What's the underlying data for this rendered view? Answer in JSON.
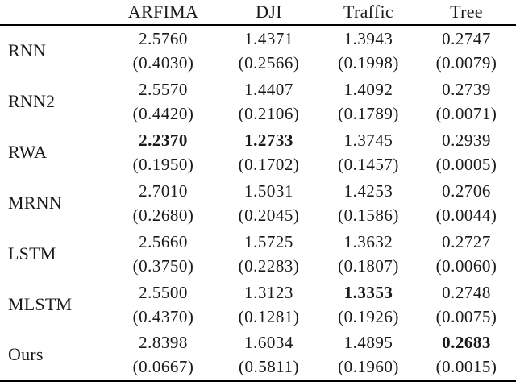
{
  "colors": {
    "background": "#ffffff",
    "text": "#1a1a1a",
    "rule": "#000000"
  },
  "table": {
    "columns": [
      "ARFIMA",
      "DJI",
      "Traffic",
      "Tree"
    ],
    "rows": [
      {
        "label": "RNN",
        "cells": [
          {
            "value": "2.5760",
            "std": "(0.4030)",
            "bold": false
          },
          {
            "value": "1.4371",
            "std": "(0.2566)",
            "bold": false
          },
          {
            "value": "1.3943",
            "std": "(0.1998)",
            "bold": false
          },
          {
            "value": "0.2747",
            "std": "(0.0079)",
            "bold": false
          }
        ]
      },
      {
        "label": "RNN2",
        "cells": [
          {
            "value": "2.5570",
            "std": "(0.4420)",
            "bold": false
          },
          {
            "value": "1.4407",
            "std": "(0.2106)",
            "bold": false
          },
          {
            "value": "1.4092",
            "std": "(0.1789)",
            "bold": false
          },
          {
            "value": "0.2739",
            "std": "(0.0071)",
            "bold": false
          }
        ]
      },
      {
        "label": "RWA",
        "cells": [
          {
            "value": "2.2370",
            "std": "(0.1950)",
            "bold": true
          },
          {
            "value": "1.2733",
            "std": "(0.1702)",
            "bold": true
          },
          {
            "value": "1.3745",
            "std": "(0.1457)",
            "bold": false
          },
          {
            "value": "0.2939",
            "std": "(0.0005)",
            "bold": false
          }
        ]
      },
      {
        "label": "MRNN",
        "cells": [
          {
            "value": "2.7010",
            "std": "(0.2680)",
            "bold": false
          },
          {
            "value": "1.5031",
            "std": "(0.2045)",
            "bold": false
          },
          {
            "value": "1.4253",
            "std": "(0.1586)",
            "bold": false
          },
          {
            "value": "0.2706",
            "std": "(0.0044)",
            "bold": false
          }
        ]
      },
      {
        "label": "LSTM",
        "cells": [
          {
            "value": "2.5660",
            "std": "(0.3750)",
            "bold": false
          },
          {
            "value": "1.5725",
            "std": "(0.2283)",
            "bold": false
          },
          {
            "value": "1.3632",
            "std": "(0.1807)",
            "bold": false
          },
          {
            "value": "0.2727",
            "std": "(0.0060)",
            "bold": false
          }
        ]
      },
      {
        "label": "MLSTM",
        "cells": [
          {
            "value": "2.5500",
            "std": "(0.4370)",
            "bold": false
          },
          {
            "value": "1.3123",
            "std": "(0.1281)",
            "bold": false
          },
          {
            "value": "1.3353",
            "std": "(0.1926)",
            "bold": true
          },
          {
            "value": "0.2748",
            "std": "(0.0075)",
            "bold": false
          }
        ]
      },
      {
        "label": "Ours",
        "cells": [
          {
            "value": "2.8398",
            "std": "(0.0667)",
            "bold": false
          },
          {
            "value": "1.6034",
            "std": "(0.5811)",
            "bold": false
          },
          {
            "value": "1.4895",
            "std": "(0.1960)",
            "bold": false
          },
          {
            "value": "0.2683",
            "std": "(0.0015)",
            "bold": true
          }
        ]
      }
    ]
  }
}
